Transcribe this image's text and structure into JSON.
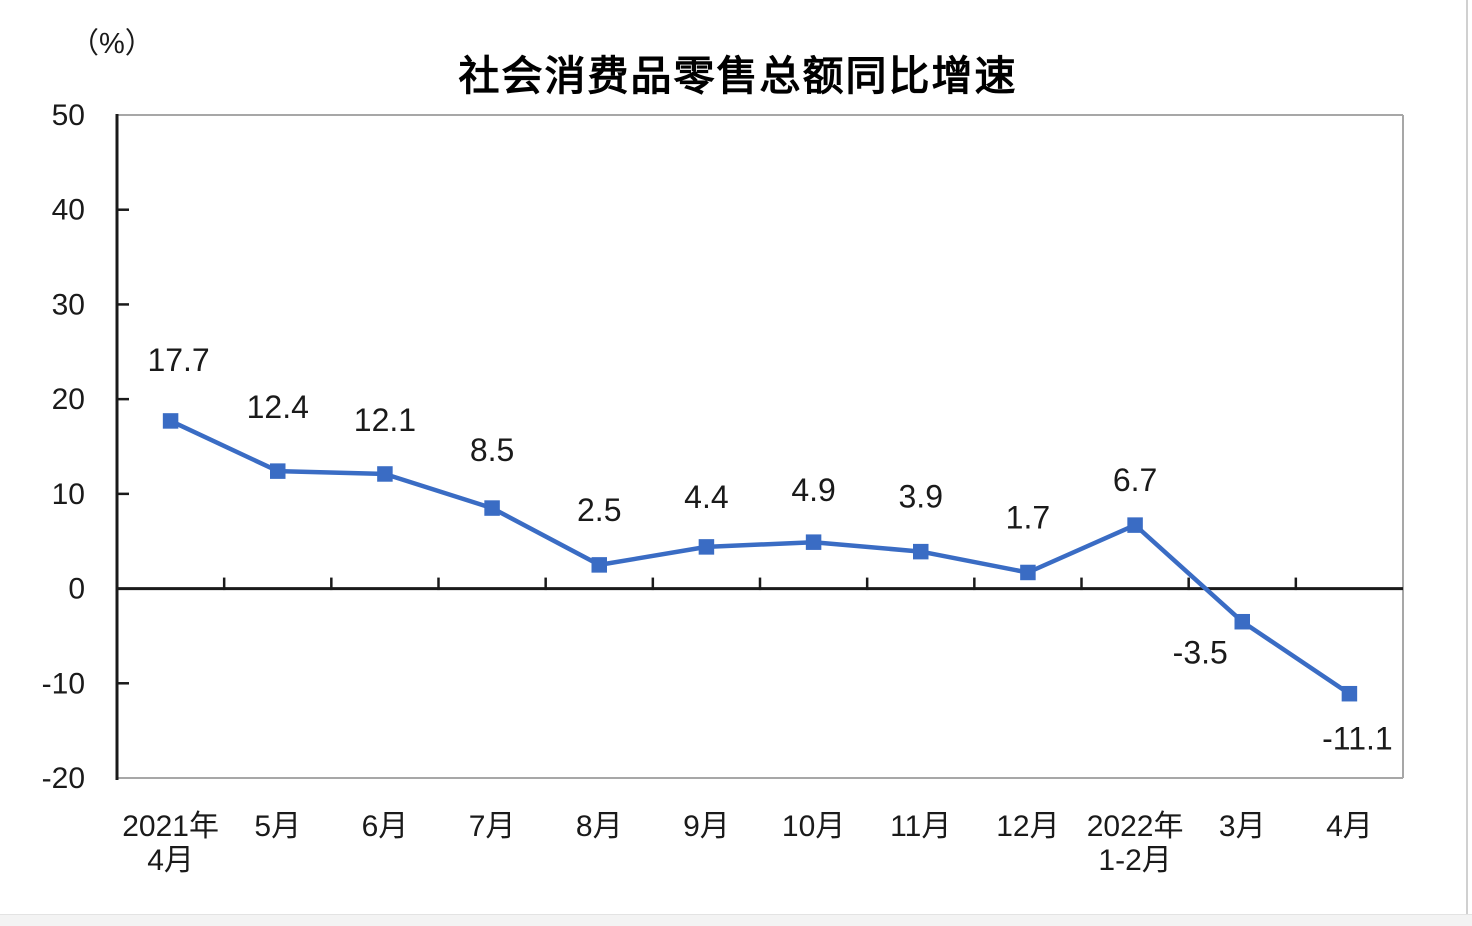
{
  "page": {
    "title": "社会消费品零售总额同比增速",
    "unit_label": "（%）"
  },
  "chart_data": {
    "type": "line",
    "title": "社会消费品零售总额同比增速",
    "unit": "（%）",
    "categories": [
      "2021年\n4月",
      "5月",
      "6月",
      "7月",
      "8月",
      "9月",
      "10月",
      "11月",
      "12月",
      "2022年\n1-2月",
      "3月",
      "4月"
    ],
    "series": [
      {
        "name": "社会消费品零售总额同比增速",
        "values": [
          17.7,
          12.4,
          12.1,
          8.5,
          2.5,
          4.4,
          4.9,
          3.9,
          1.7,
          6.7,
          -3.5,
          -11.1
        ]
      }
    ],
    "data_labels": [
      "17.7",
      "12.4",
      "12.1",
      "8.5",
      "2.5",
      "4.4",
      "4.9",
      "3.9",
      "1.7",
      "6.7",
      "-3.5",
      "-11.1"
    ],
    "ylim": [
      -20,
      50
    ],
    "y_tick_step": 10,
    "y_tick_labels": [
      "50",
      "40",
      "30",
      "20",
      "10",
      "0",
      "-10",
      "-20"
    ],
    "grid": false,
    "legend": "none",
    "marker": "square",
    "line_color": "#3A6CC4",
    "axis_color": "#1a1a1a",
    "border_color": "#A7A7A7",
    "label_color": "#1a1a1a"
  }
}
